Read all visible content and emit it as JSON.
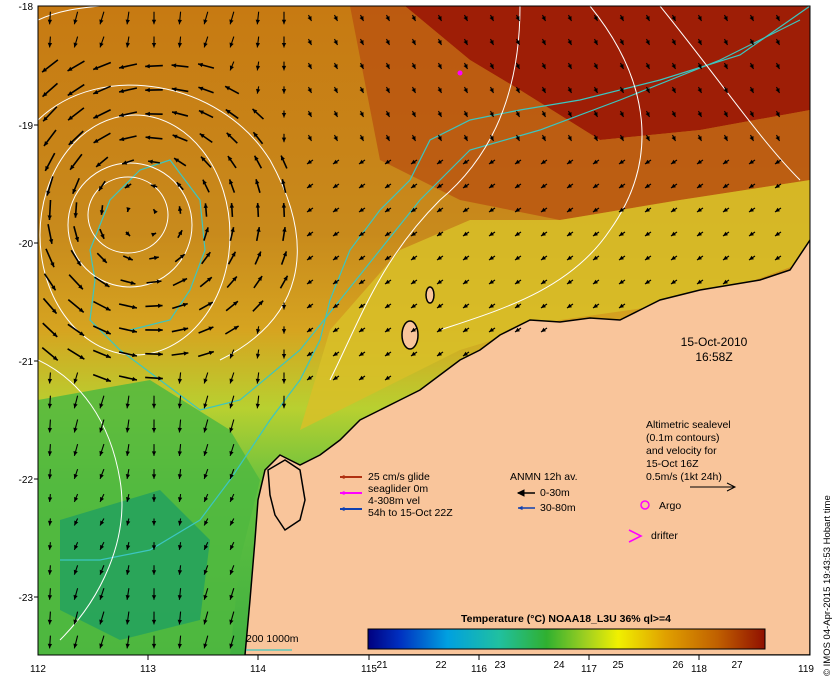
{
  "map": {
    "lon_ticks": [
      "112",
      "113",
      "114",
      "115",
      "116",
      "117",
      "118",
      "119"
    ],
    "lat_ticks": [
      "-18",
      "-19",
      "-20",
      "-21",
      "-22",
      "-23"
    ],
    "date_line1": "15-Oct-2010",
    "date_line2": "16:58Z",
    "altimetry": {
      "line1": "Altimetric sealevel",
      "line2": "(0.1m contours)",
      "line3": "and velocity for",
      "line4": "15-Oct 16Z",
      "line5": "0.5m/s (1kt 24h)"
    },
    "glider_legend": {
      "line1": "25 cm/s glide",
      "line2": "seaglider 0m",
      "line3": "4-308m vel",
      "line4": "54h to 15-Oct 22Z"
    },
    "anmn_legend": {
      "title": "ANMN 12h av.",
      "item1": "0-30m",
      "item2": "30-80m"
    },
    "argo_label": "Argo",
    "drifter_label": "drifter",
    "isobath_label": "200  1000m",
    "colorbar_title": "Temperature (°C) NOAA18_L3U 36% ql>=4",
    "colorbar_ticks": [
      "21",
      "22",
      "23",
      "24",
      "25",
      "26",
      "27"
    ],
    "credit": "© IMOS 04-Apr-2015 19:43:53 Hobart time",
    "colors": {
      "land": "#f9c59b",
      "isobath": "#3cc6c0",
      "contour": "#ffffff",
      "glider_arrow": "#b03010",
      "seaglider_arrow": "#ff00ff",
      "vel_arrow": "#1040b0",
      "argo": "#ff00ff",
      "drifter": "#ff00ff"
    }
  }
}
